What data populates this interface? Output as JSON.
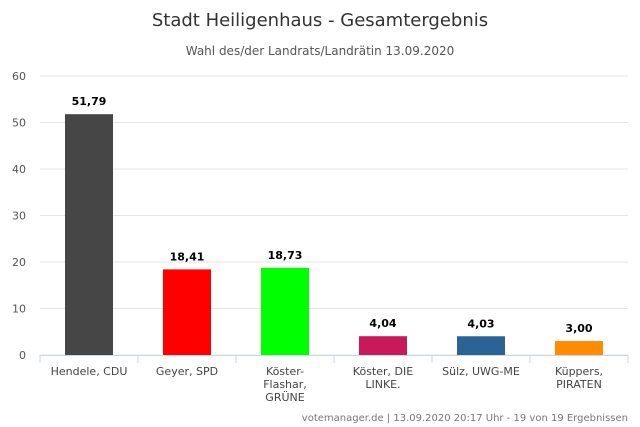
{
  "chart_data": {
    "type": "bar",
    "title": "Stadt Heiligenhaus - Gesamtergebnis",
    "subtitle": "Wahl des/der Landrats/Landrätin 13.09.2020",
    "categories": [
      [
        "Hendele, CDU"
      ],
      [
        "Geyer, SPD"
      ],
      [
        "Köster-",
        "Flashar,",
        "GRÜNE"
      ],
      [
        "Köster, DIE",
        "LINKE."
      ],
      [
        "Sülz, UWG-ME"
      ],
      [
        "Küppers,",
        "PIRATEN"
      ]
    ],
    "values": [
      51.79,
      18.41,
      18.73,
      4.04,
      4.03,
      3.0
    ],
    "value_labels": [
      "51,79",
      "18,41",
      "18,73",
      "4,04",
      "4,03",
      "3,00"
    ],
    "colors": [
      "#464646",
      "#ff0000",
      "#00ff00",
      "#c8195a",
      "#2a6496",
      "#ff8c00"
    ],
    "ylim": [
      0,
      60
    ],
    "yticks": [
      0,
      10,
      20,
      30,
      40,
      50,
      60
    ],
    "grid": true,
    "xlabel": "",
    "ylabel": "",
    "credits": "votemanager.de | 13.09.2020 20:17 Uhr - 19 von 19 Ergebnissen"
  }
}
